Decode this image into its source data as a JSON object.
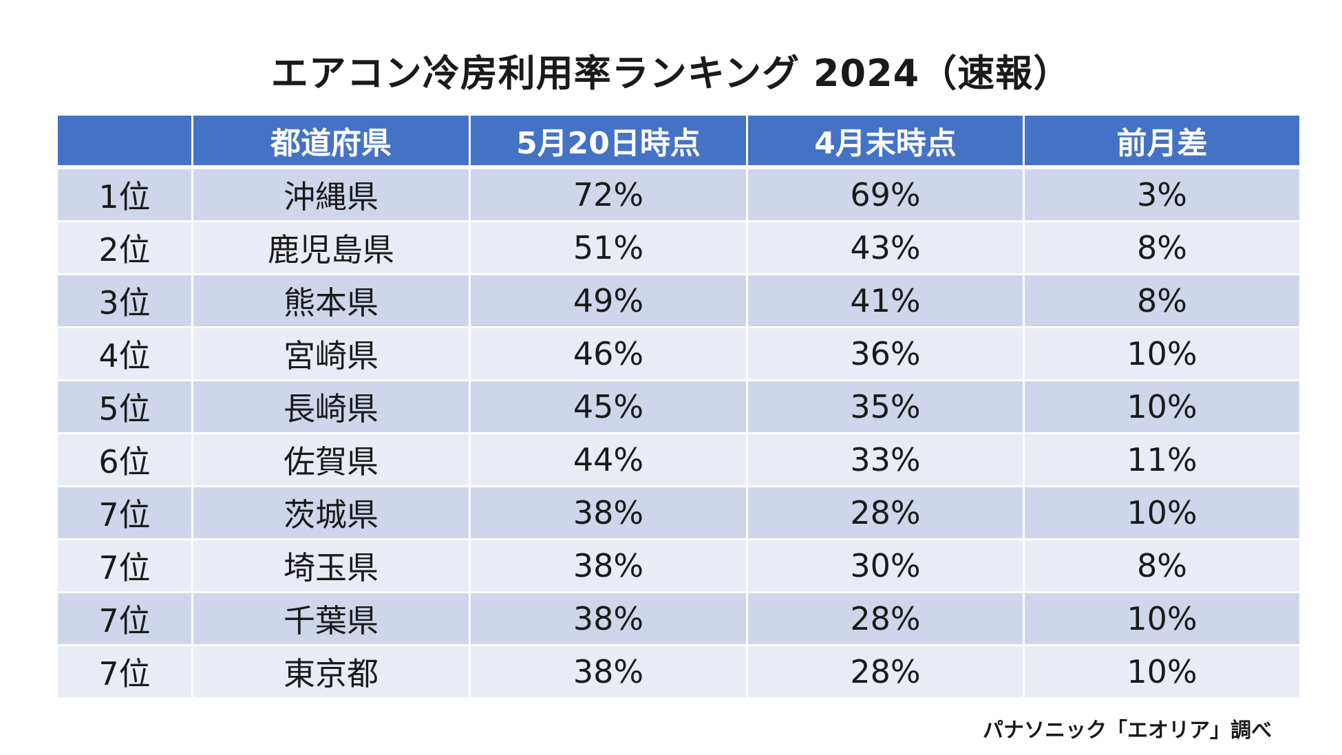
{
  "title": "エアコン冷房利用率ランキング 2024（速報）",
  "colors": {
    "header": "#4472C4",
    "row_odd": "#CFD5EA",
    "row_even": "#E9EBF5"
  },
  "table": {
    "headers": [
      "",
      "都道府県",
      "5月20日時点",
      "4月末時点",
      "前月差"
    ],
    "rows": [
      [
        "1位",
        "沖縄県",
        "72%",
        "69%",
        "3%"
      ],
      [
        "2位",
        "鹿児島県",
        "51%",
        "43%",
        "8%"
      ],
      [
        "3位",
        "熊本県",
        "49%",
        "41%",
        "8%"
      ],
      [
        "4位",
        "宮崎県",
        "46%",
        "36%",
        "10%"
      ],
      [
        "5位",
        "長崎県",
        "45%",
        "35%",
        "10%"
      ],
      [
        "6位",
        "佐賀県",
        "44%",
        "33%",
        "11%"
      ],
      [
        "7位",
        "茨城県",
        "38%",
        "28%",
        "10%"
      ],
      [
        "7位",
        "埼玉県",
        "38%",
        "30%",
        "8%"
      ],
      [
        "7位",
        "千葉県",
        "38%",
        "28%",
        "10%"
      ],
      [
        "7位",
        "東京都",
        "38%",
        "28%",
        "10%"
      ]
    ]
  },
  "footer": "パナソニック「エオリア」調べ"
}
